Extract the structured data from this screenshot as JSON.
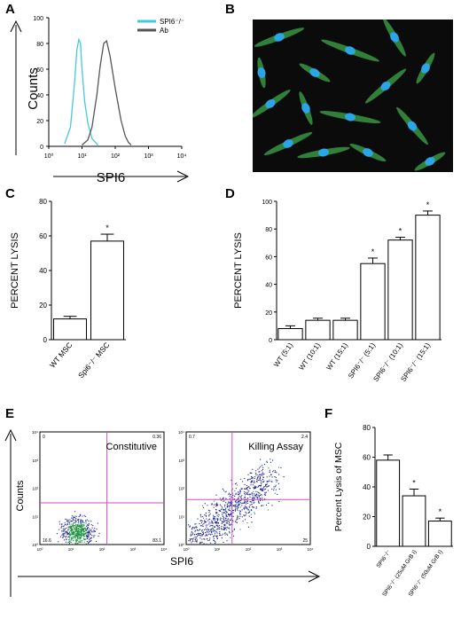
{
  "panels": {
    "A": "A",
    "B": "B",
    "C": "C",
    "D": "D",
    "E": "E",
    "F": "F"
  },
  "colors": {
    "spi6_ko_line": "#46c8dc",
    "ab_line": "#555555",
    "gate": "#d24fc7",
    "dot_dense": "#1a8f3a",
    "dot_sparse": "#1a1aa0",
    "cell_green": "#3fa84a",
    "nucleus_blue": "#2aa6e6"
  },
  "chart_data": [
    {
      "panel": "A",
      "type": "line",
      "xlabel": "SPI6",
      "ylabel": "Counts",
      "x_scale": "log",
      "xlim": [
        1,
        10000
      ],
      "ylim": [
        0,
        100
      ],
      "x_ticks": [
        "10⁰",
        "10¹",
        "10²",
        "10³",
        "10⁴"
      ],
      "y_ticks": [
        "0",
        "20",
        "40",
        "60",
        "80",
        "100"
      ],
      "legend": [
        "SPI6⁻/⁻",
        "Ab"
      ],
      "legend_position": "top-right",
      "series": [
        {
          "name": "SPI6⁻/⁻",
          "x": [
            3,
            4.5,
            6,
            7,
            8,
            9,
            10,
            12,
            15,
            20,
            30
          ],
          "y": [
            2,
            15,
            50,
            75,
            83,
            80,
            60,
            35,
            18,
            6,
            1
          ]
        },
        {
          "name": "Ab",
          "x": [
            10,
            15,
            20,
            28,
            35,
            45,
            55,
            70,
            100,
            150,
            200,
            250,
            300
          ],
          "y": [
            1,
            5,
            15,
            40,
            62,
            80,
            82,
            70,
            45,
            20,
            8,
            3,
            1
          ]
        }
      ]
    },
    {
      "panel": "C",
      "type": "bar",
      "ylabel": "PERCENT LYSIS",
      "ylim": [
        0,
        80
      ],
      "y_ticks": [
        "0",
        "20",
        "40",
        "60",
        "80"
      ],
      "categories": [
        "WT MSC",
        "Spi6⁻/⁻ MSC"
      ],
      "values": [
        12,
        57
      ],
      "errors": [
        1.5,
        4
      ],
      "significance": [
        "",
        "*"
      ]
    },
    {
      "panel": "D",
      "type": "bar",
      "ylabel": "PERCENT LYSIS",
      "ylim": [
        0,
        100
      ],
      "y_ticks": [
        "0",
        "20",
        "40",
        "60",
        "80",
        "100"
      ],
      "categories": [
        "WT (5:1)",
        "WT (10:1)",
        "WT (15:1)",
        "SPI6⁻/⁻ (5:1)",
        "SPI6⁻/⁻ (10:1)",
        "SPI6⁻/⁻ (15:1)"
      ],
      "values": [
        8,
        14,
        14,
        55,
        72,
        90
      ],
      "errors": [
        2,
        1.5,
        1.5,
        4,
        2,
        3
      ],
      "significance": [
        "",
        "",
        "",
        "*",
        "*",
        "*"
      ]
    },
    {
      "panel": "E",
      "type": "scatter",
      "xlabel": "SPI6",
      "ylabel": "Counts",
      "x_scale": "log",
      "y_scale": "log",
      "x_ticks": [
        "10⁰",
        "10¹",
        "10²",
        "10³",
        "10⁴"
      ],
      "y_ticks": [
        "10⁰",
        "10¹",
        "10²",
        "10³",
        "10⁴"
      ],
      "plots": [
        {
          "title": "Constitutive",
          "quadrants": {
            "upper_left": "0",
            "upper_right": "0.36",
            "lower_left": "16.6",
            "lower_right": "83.1"
          }
        },
        {
          "title": "Killing Assay",
          "quadrants": {
            "upper_left": "0.7",
            "upper_right": "2.4",
            "lower_left": "71.9",
            "lower_right": "25"
          }
        }
      ]
    },
    {
      "panel": "F",
      "type": "bar",
      "ylabel": "Percent Lysis of  MSC",
      "ylim": [
        0,
        80
      ],
      "y_ticks": [
        "0",
        "20",
        "40",
        "60",
        "80"
      ],
      "categories": [
        "SPI6⁻/⁻",
        "SPI6⁻/⁻ (25uM GrB I)",
        "SPI6⁻/⁻ (50uM GrB I)"
      ],
      "values": [
        58,
        34,
        17
      ],
      "errors": [
        3.5,
        4.5,
        2
      ],
      "significance": [
        "",
        "*",
        "*"
      ]
    }
  ]
}
